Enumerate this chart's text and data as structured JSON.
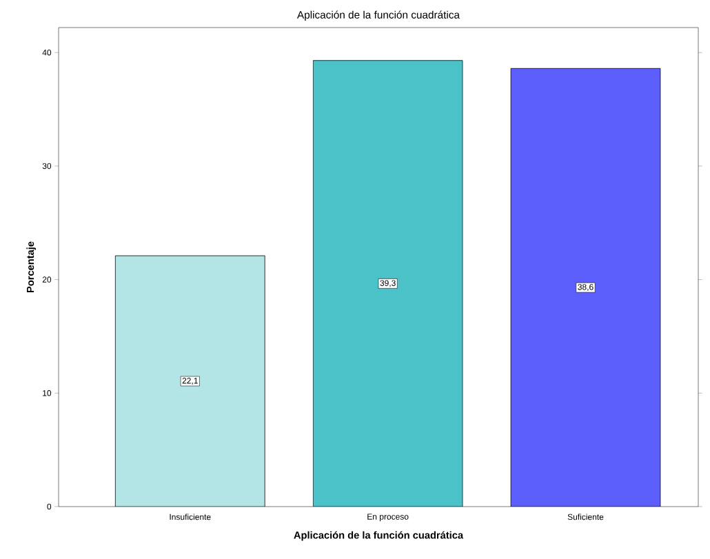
{
  "chart_data": {
    "type": "bar",
    "title": "Aplicación de la función cuadrática",
    "xlabel": "Aplicación de la función cuadrática",
    "ylabel": "Porcentaje",
    "categories": [
      "Insuficiente",
      "En proceso",
      "Suficiente"
    ],
    "values": [
      22.1,
      39.3,
      38.6
    ],
    "value_labels": [
      "22,1",
      "39,3",
      "38,6"
    ],
    "colors": [
      "#b3e5e6",
      "#4ac2c7",
      "#5d5ffd"
    ],
    "ylim": [
      0,
      42.2
    ],
    "yticks": [
      0,
      10,
      20,
      30,
      40
    ],
    "grid": false
  }
}
